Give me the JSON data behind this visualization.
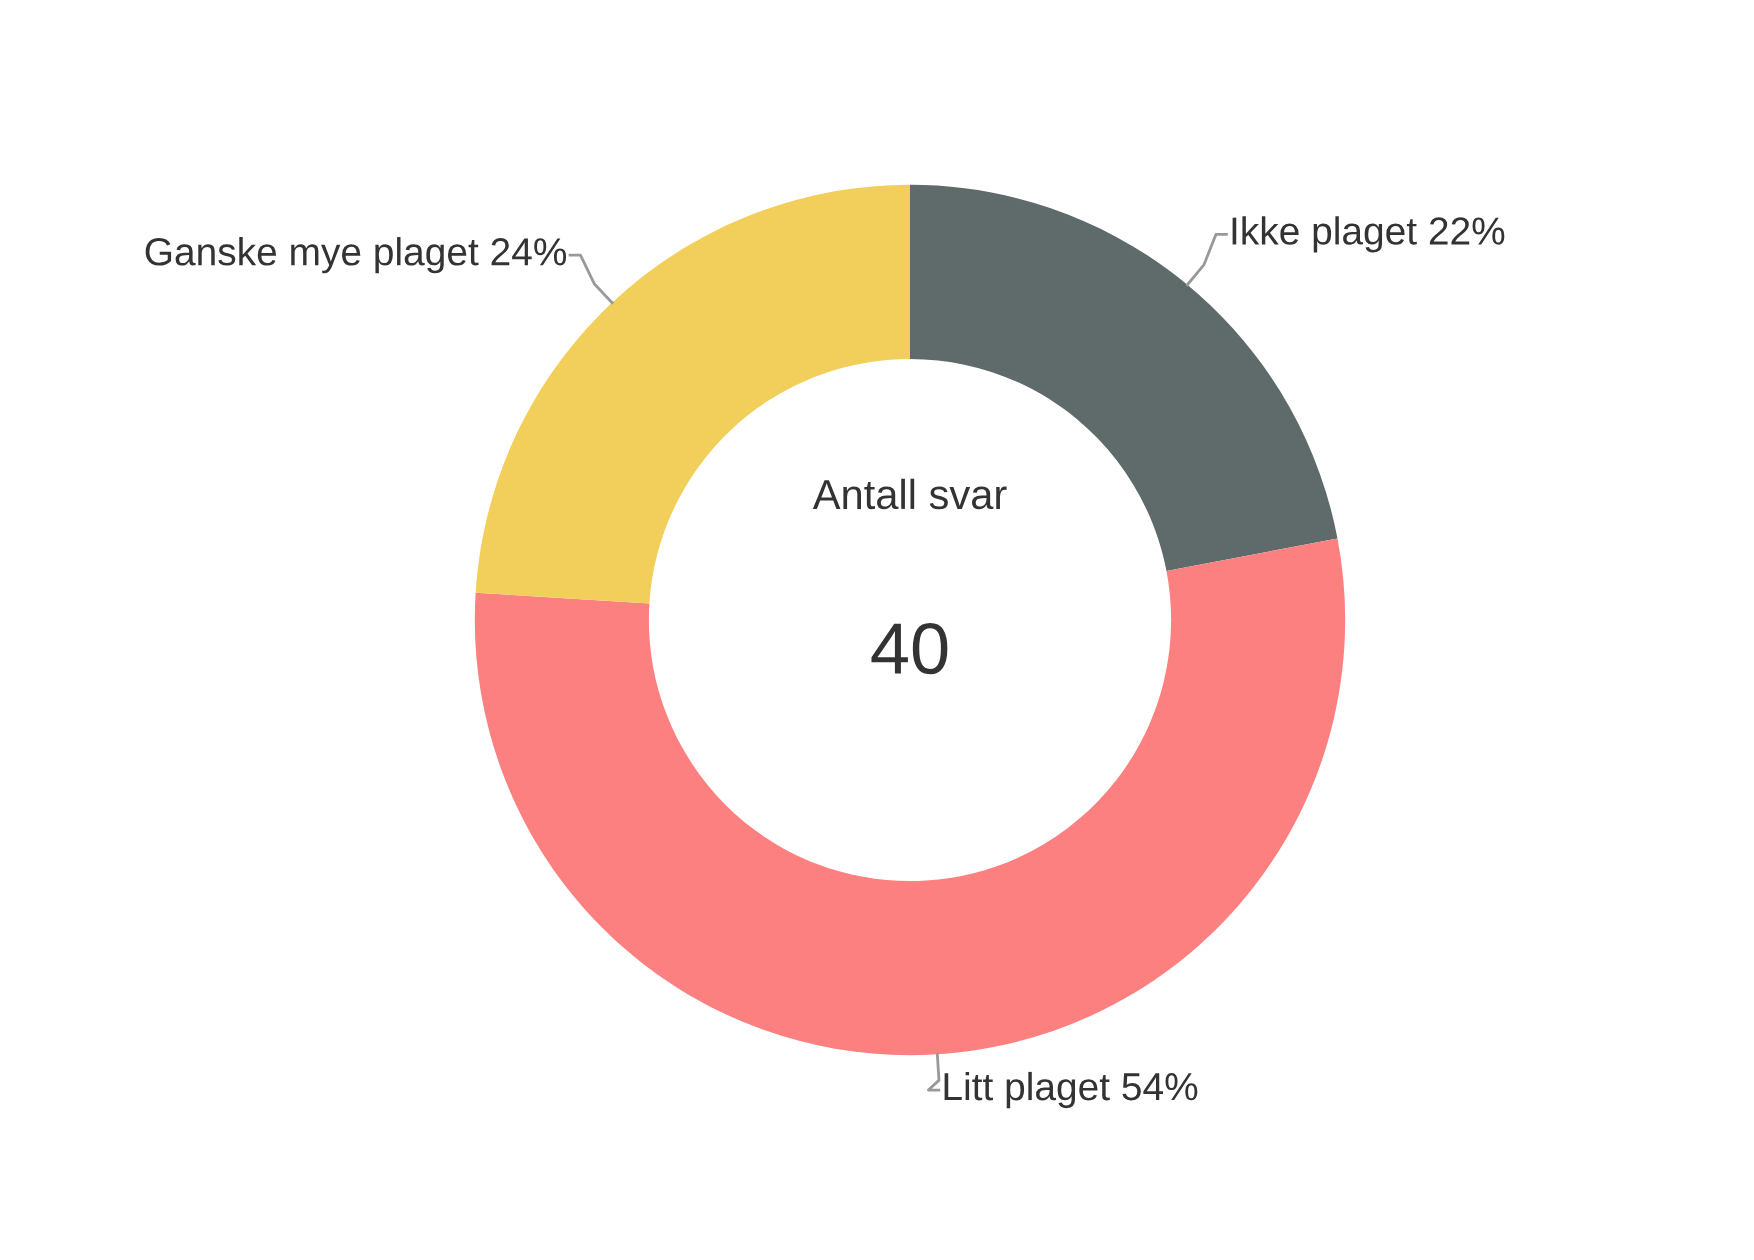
{
  "chart_data": {
    "type": "donut",
    "categories": [
      "Ikke plaget",
      "Litt plaget",
      "Ganske mye plaget"
    ],
    "values": [
      22,
      54,
      24
    ],
    "value_labels": [
      "22%",
      "54%",
      "24%"
    ],
    "colors": [
      "#5f6a6a",
      "#fc8080",
      "#f2cf5a"
    ],
    "annotations": [
      "Antall svar",
      "40"
    ],
    "legend": false
  }
}
